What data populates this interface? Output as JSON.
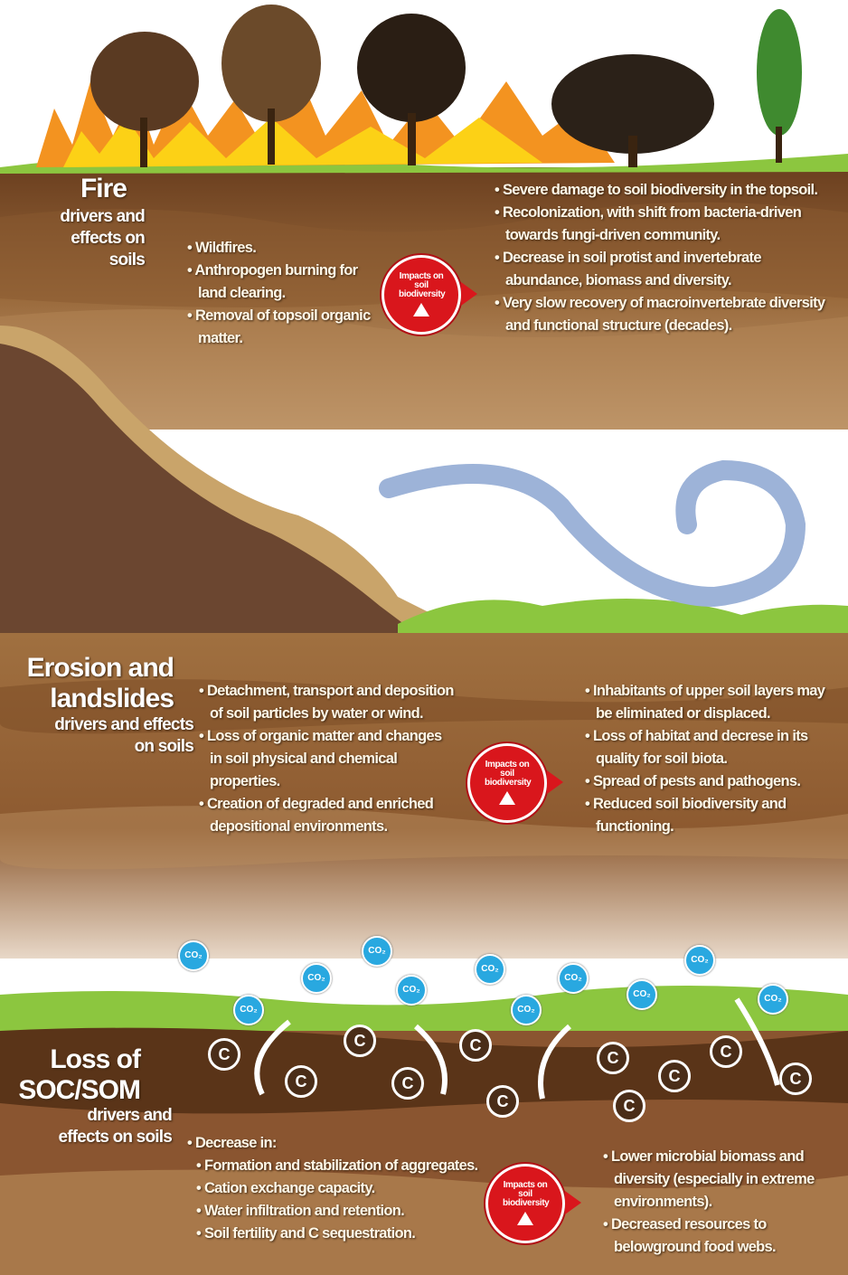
{
  "sections": [
    {
      "title": "Fire",
      "subtitle": "drivers and effects on soils",
      "drivers": [
        "Wildfires.",
        "Anthropogen burning for land clearing.",
        "Removal of topsoil organic matter."
      ],
      "badge": "Impacts on soil biodiversity",
      "effects": [
        "Severe damage to soil biodiversity in the topsoil.",
        "Recolonization, with shift from bacteria-driven towards fungi-driven community.",
        "Decrease in soil protist and invertebrate abundance, biomass and diversity.",
        "Very slow recovery of macroinvertebrate diversity and functional structure (decades)."
      ]
    },
    {
      "title": "Erosion and landslides",
      "subtitle": "drivers and effects on soils",
      "drivers": [
        "Detachment, transport and deposition of soil particles by water or wind.",
        "Loss of organic matter and changes in soil physical and chemical properties.",
        "Creation of degraded and enriched depositional environments."
      ],
      "badge": "Impacts on soil biodiversity",
      "effects": [
        "Inhabitants of upper soil layers may be eliminated or displaced.",
        "Loss of habitat and decrese in its quality for soil biota.",
        "Spread of pests and pathogens.",
        "Reduced soil biodiversity and functioning."
      ]
    },
    {
      "title": "Loss of SOC/SOM",
      "subtitle": "drivers and effects on soils",
      "drivers_lead": "Decrease in:",
      "drivers": [
        "Formation and stabilization of aggregates.",
        "Cation exchange capacity.",
        "Water infiltration and retention.",
        "Soil fertility and C sequestration."
      ],
      "badge": "Impacts on soil biodiversity",
      "effects": [
        "Lower microbial biomass and diversity (especially in extreme environments).",
        "Decreased resources to belowground food webs."
      ]
    }
  ],
  "co2_label": "CO₂",
  "carbon_label": "C"
}
